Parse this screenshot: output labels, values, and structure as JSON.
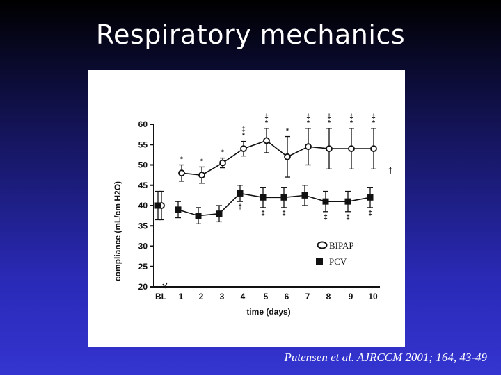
{
  "slide": {
    "title": "Respiratory mechanics",
    "citation": "Putensen et al. AJRCCM 2001; 164, 43-49"
  },
  "colors": {
    "background_top": "#000000",
    "background_bottom": "#3434d0",
    "title": "#ffffff",
    "figure_background": "#ffffff",
    "plot_ink": "#111111"
  },
  "chart_data": {
    "type": "line",
    "title": "",
    "xlabel": "time (days)",
    "ylabel": "compliance (mL/cm H2O)",
    "ylim": [
      20,
      60
    ],
    "yticks": [
      20,
      25,
      30,
      35,
      40,
      45,
      50,
      55,
      60
    ],
    "categories": [
      "BL",
      "1",
      "2",
      "3",
      "4",
      "5",
      "6",
      "7",
      "8",
      "9",
      "10"
    ],
    "grid": false,
    "legend_position": "lower-right",
    "series": [
      {
        "name": "BIPAP",
        "marker": "open-circle",
        "values": [
          40,
          48,
          47.5,
          50.5,
          54,
          56,
          52,
          54.5,
          54,
          54,
          54
        ],
        "error": [
          3.5,
          2,
          2,
          1.2,
          1.8,
          3,
          5,
          4.5,
          5,
          5,
          5
        ],
        "annotations_above": [
          "",
          "*",
          "*",
          "*",
          "‡ *",
          "‡ *",
          "*",
          "‡ *",
          "‡ *",
          "‡ *",
          "‡ *"
        ]
      },
      {
        "name": "PCV",
        "marker": "filled-square",
        "values": [
          40,
          39,
          37.5,
          38,
          43,
          42,
          42,
          42.5,
          41,
          41,
          42
        ],
        "error": [
          3.5,
          2,
          2,
          2,
          2,
          2.5,
          2.5,
          2.5,
          2.5,
          2.5,
          2.5
        ],
        "annotations_below": [
          "",
          "",
          "",
          "",
          "‡",
          "‡",
          "‡",
          "",
          "‡",
          "‡",
          "‡"
        ]
      }
    ],
    "side_annotation": "†"
  }
}
